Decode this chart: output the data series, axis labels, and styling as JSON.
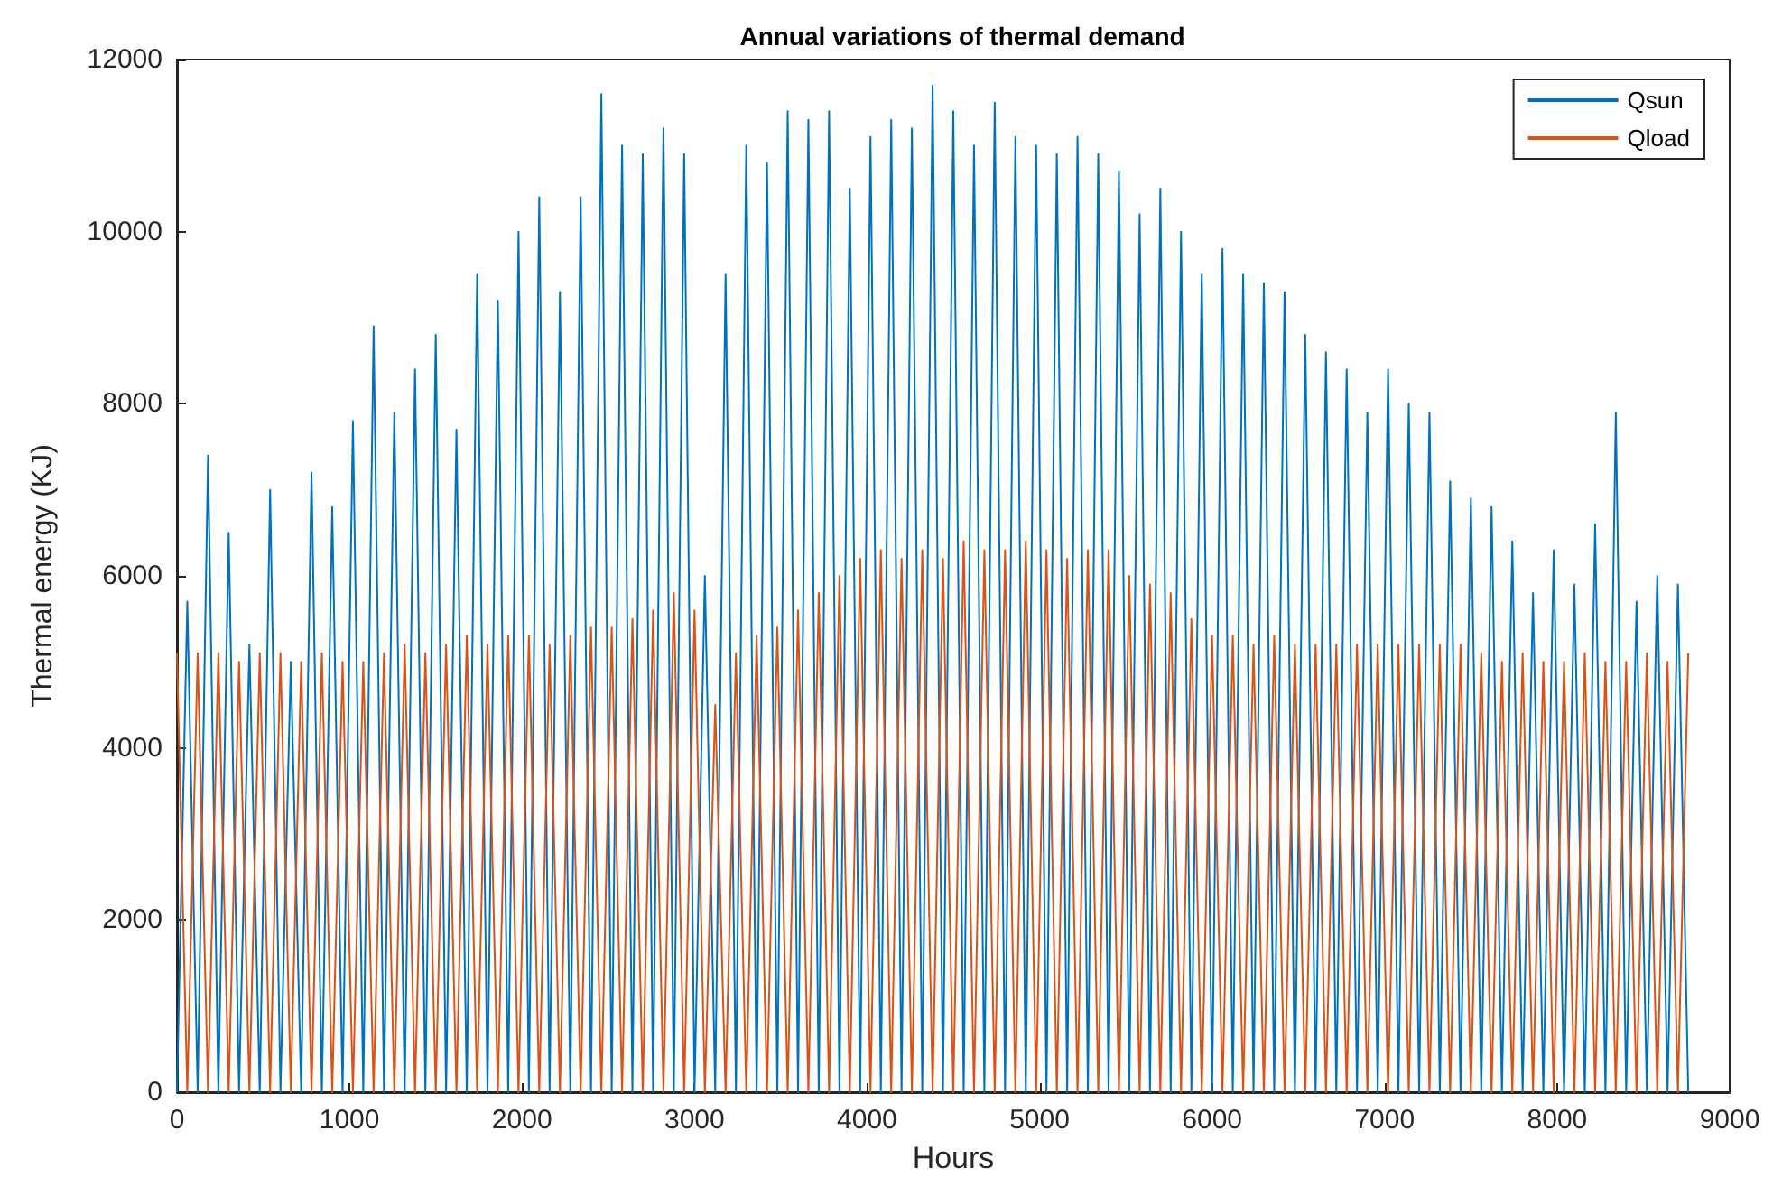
{
  "chart_data": {
    "type": "line",
    "title": "Annual variations of thermal demand",
    "xlabel": "Hours",
    "ylabel": "Thermal energy (KJ)",
    "x": [
      0,
      60,
      120,
      180,
      240,
      300,
      360,
      420,
      480,
      540,
      600,
      660,
      720,
      780,
      840,
      900,
      960,
      1020,
      1080,
      1140,
      1200,
      1260,
      1320,
      1380,
      1440,
      1500,
      1560,
      1620,
      1680,
      1740,
      1800,
      1860,
      1920,
      1980,
      2040,
      2100,
      2160,
      2220,
      2280,
      2340,
      2400,
      2460,
      2520,
      2580,
      2640,
      2700,
      2760,
      2820,
      2880,
      2940,
      3000,
      3060,
      3120,
      3180,
      3240,
      3300,
      3360,
      3420,
      3480,
      3540,
      3600,
      3660,
      3720,
      3780,
      3840,
      3900,
      3960,
      4020,
      4080,
      4140,
      4200,
      4260,
      4320,
      4380,
      4440,
      4500,
      4560,
      4620,
      4680,
      4740,
      4800,
      4860,
      4920,
      4980,
      5040,
      5100,
      5160,
      5220,
      5280,
      5340,
      5400,
      5460,
      5520,
      5580,
      5640,
      5700,
      5760,
      5820,
      5880,
      5940,
      6000,
      6060,
      6120,
      6180,
      6240,
      6300,
      6360,
      6420,
      6480,
      6540,
      6600,
      6660,
      6720,
      6780,
      6840,
      6900,
      6960,
      7020,
      7080,
      7140,
      7200,
      7260,
      7320,
      7380,
      7440,
      7500,
      7560,
      7620,
      7680,
      7740,
      7800,
      7860,
      7920,
      7980,
      8040,
      8100,
      8160,
      8220,
      8280,
      8340,
      8400,
      8460,
      8520,
      8580,
      8640,
      8700,
      8760
    ],
    "series": [
      {
        "name": "Qsun",
        "color": "#0072bd",
        "values": [
          0,
          5700,
          0,
          7400,
          0,
          6500,
          0,
          5200,
          0,
          7000,
          0,
          5000,
          0,
          7200,
          0,
          6800,
          0,
          7800,
          0,
          8900,
          0,
          7900,
          0,
          8400,
          0,
          8800,
          0,
          7700,
          0,
          9500,
          0,
          9200,
          0,
          10000,
          0,
          10400,
          0,
          9300,
          0,
          10400,
          0,
          11600,
          0,
          11000,
          0,
          10900,
          0,
          11200,
          0,
          10900,
          0,
          6000,
          0,
          9500,
          0,
          11000,
          0,
          10800,
          0,
          11400,
          0,
          11300,
          0,
          11400,
          0,
          10500,
          0,
          11100,
          0,
          11300,
          0,
          11200,
          0,
          11700,
          0,
          11400,
          0,
          11000,
          0,
          11500,
          0,
          11100,
          0,
          11000,
          0,
          10900,
          0,
          11100,
          0,
          10900,
          0,
          10700,
          0,
          10200,
          0,
          10500,
          0,
          10000,
          0,
          9500,
          0,
          9800,
          0,
          9500,
          0,
          9400,
          0,
          9300,
          0,
          8800,
          0,
          8600,
          0,
          8400,
          0,
          7900,
          0,
          8400,
          0,
          8000,
          0,
          7900,
          0,
          7100,
          0,
          6900,
          0,
          6800,
          0,
          6400,
          0,
          5800,
          0,
          6300,
          0,
          5900,
          0,
          6600,
          0,
          7900,
          0,
          5700,
          0,
          6000,
          0,
          5900,
          0
        ]
      },
      {
        "name": "Qload",
        "color": "#d95319",
        "values": [
          5100,
          0,
          5100,
          0,
          5100,
          0,
          5000,
          0,
          5100,
          0,
          5100,
          0,
          5000,
          0,
          5100,
          0,
          5000,
          0,
          5000,
          0,
          5100,
          0,
          5200,
          0,
          5100,
          0,
          5200,
          0,
          5300,
          0,
          5200,
          0,
          5300,
          0,
          5300,
          0,
          5200,
          0,
          5300,
          0,
          5400,
          0,
          5400,
          0,
          5500,
          0,
          5600,
          0,
          5800,
          0,
          5600,
          0,
          4500,
          0,
          5100,
          0,
          5300,
          0,
          5400,
          0,
          5600,
          0,
          5800,
          0,
          6000,
          0,
          6200,
          0,
          6300,
          0,
          6200,
          0,
          6300,
          0,
          6200,
          0,
          6400,
          0,
          6300,
          0,
          6300,
          0,
          6400,
          0,
          6300,
          0,
          6200,
          0,
          6300,
          0,
          6300,
          0,
          6000,
          0,
          5900,
          0,
          5800,
          0,
          5500,
          0,
          5300,
          0,
          5300,
          0,
          5200,
          0,
          5300,
          0,
          5200,
          0,
          5200,
          0,
          5200,
          0,
          5200,
          0,
          5200,
          0,
          5200,
          0,
          5200,
          0,
          5200,
          0,
          5200,
          0,
          5100,
          0,
          5000,
          0,
          5100,
          0,
          5000,
          0,
          5000,
          0,
          5100,
          0,
          5000,
          0,
          5000,
          0,
          5100,
          0,
          5000,
          0,
          5100
        ]
      }
    ],
    "xlim": [
      0,
      9000
    ],
    "xticks": [
      0,
      1000,
      2000,
      3000,
      4000,
      5000,
      6000,
      7000,
      8000,
      9000
    ],
    "ylim": [
      0,
      12000
    ],
    "yticks": [
      0,
      2000,
      4000,
      6000,
      8000,
      10000,
      12000
    ],
    "legend": "top right",
    "marker": "none",
    "line_style": "solid"
  }
}
